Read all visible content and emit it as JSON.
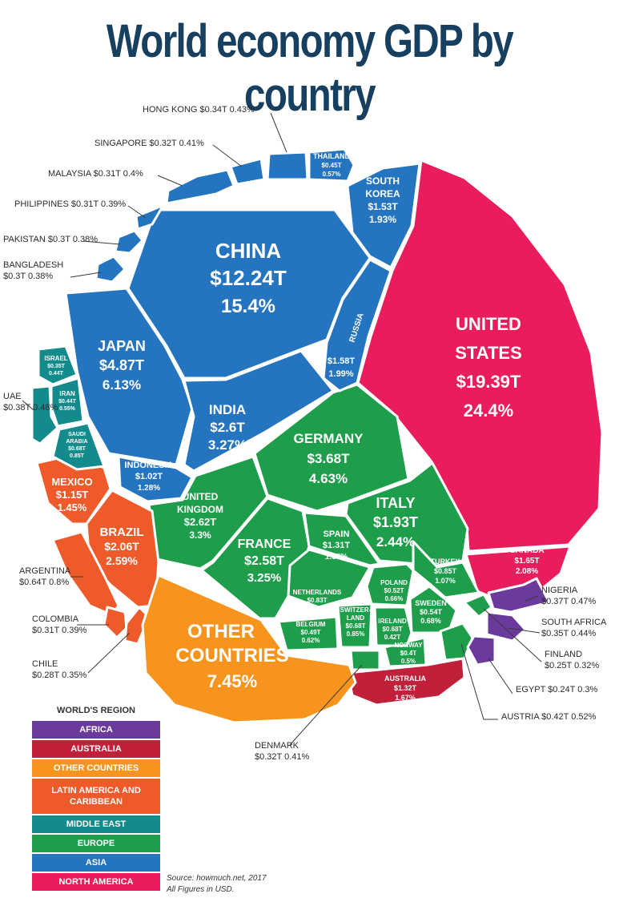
{
  "title": "World economy GDP by country",
  "source": "Source: howmuch.net, 2017",
  "currency_note": "All Figures in USD.",
  "legend": {
    "title": "WORLD'S REGION",
    "items": [
      {
        "label": "AFRICA",
        "color": "#6a3a9c"
      },
      {
        "label": "AUSTRALIA",
        "color": "#c0203a"
      },
      {
        "label": "OTHER COUNTRIES",
        "color": "#f7941d"
      },
      {
        "label": "LATIN AMERICA AND CARIBBEAN",
        "color": "#ee5a2a"
      },
      {
        "label": "MIDDLE EAST",
        "color": "#138a8c"
      },
      {
        "label": "EUROPE",
        "color": "#1e9e4a"
      },
      {
        "label": "ASIA",
        "color": "#2474c0"
      },
      {
        "label": "NORTH AMERICA",
        "color": "#e91d5c"
      }
    ]
  },
  "chart_data": {
    "type": "voronoi treemap",
    "title": "World economy GDP by country",
    "units": "USD trillions / share of world GDP",
    "countries": [
      {
        "name": "UNITED STATES",
        "value": "$19.39T",
        "share": "24.4%",
        "gdp": 19.39,
        "pct": 24.4,
        "region": "NORTH AMERICA"
      },
      {
        "name": "CHINA",
        "value": "$12.24T",
        "share": "15.4%",
        "gdp": 12.24,
        "pct": 15.4,
        "region": "ASIA"
      },
      {
        "name": "JAPAN",
        "value": "$4.87T",
        "share": "6.13%",
        "gdp": 4.87,
        "pct": 6.13,
        "region": "ASIA"
      },
      {
        "name": "GERMANY",
        "value": "$3.68T",
        "share": "4.63%",
        "gdp": 3.68,
        "pct": 4.63,
        "region": "EUROPE"
      },
      {
        "name": "INDIA",
        "value": "$2.6T",
        "share": "3.27%",
        "gdp": 2.6,
        "pct": 3.27,
        "region": "ASIA"
      },
      {
        "name": "UNITED KINGDOM",
        "value": "$2.62T",
        "share": "3.3%",
        "gdp": 2.62,
        "pct": 3.3,
        "region": "EUROPE"
      },
      {
        "name": "FRANCE",
        "value": "$2.58T",
        "share": "3.25%",
        "gdp": 2.58,
        "pct": 3.25,
        "region": "EUROPE"
      },
      {
        "name": "BRAZIL",
        "value": "$2.06T",
        "share": "2.59%",
        "gdp": 2.06,
        "pct": 2.59,
        "region": "LATIN AMERICA AND CARIBBEAN"
      },
      {
        "name": "ITALY",
        "value": "$1.93T",
        "share": "2.44%",
        "gdp": 1.93,
        "pct": 2.44,
        "region": "EUROPE"
      },
      {
        "name": "CANADA",
        "value": "$1.65T",
        "share": "2.08%",
        "gdp": 1.65,
        "pct": 2.08,
        "region": "NORTH AMERICA"
      },
      {
        "name": "RUSSIA",
        "value": "$1.58T",
        "share": "1.99%",
        "gdp": 1.58,
        "pct": 1.99,
        "region": "ASIA"
      },
      {
        "name": "SOUTH KOREA",
        "value": "$1.53T",
        "share": "1.93%",
        "gdp": 1.53,
        "pct": 1.93,
        "region": "ASIA"
      },
      {
        "name": "AUSTRALIA",
        "value": "$1.32T",
        "share": "1.67%",
        "gdp": 1.32,
        "pct": 1.67,
        "region": "AUSTRALIA"
      },
      {
        "name": "SPAIN",
        "value": "$1.31T",
        "share": "1.65%",
        "gdp": 1.31,
        "pct": 1.65,
        "region": "EUROPE"
      },
      {
        "name": "MEXICO",
        "value": "$1.15T",
        "share": "1.45%",
        "gdp": 1.15,
        "pct": 1.45,
        "region": "LATIN AMERICA AND CARIBBEAN"
      },
      {
        "name": "INDONESIA",
        "value": "$1.02T",
        "share": "1.28%",
        "gdp": 1.02,
        "pct": 1.28,
        "region": "ASIA"
      },
      {
        "name": "TURKEY",
        "value": "$0.85T",
        "share": "1.07%",
        "gdp": 0.85,
        "pct": 1.07,
        "region": "EUROPE"
      },
      {
        "name": "NETHERLANDS",
        "value": "$0.83T",
        "share": "1.04%",
        "gdp": 0.83,
        "pct": 1.04,
        "region": "EUROPE"
      },
      {
        "name": "SAUDI ARABIA",
        "value": "$0.68T",
        "share": "0.85T",
        "gdp": 0.68,
        "pct": 0.85,
        "region": "MIDDLE EAST"
      },
      {
        "name": "SWITZERLAND",
        "value": "$0.68T",
        "share": "0.85%",
        "gdp": 0.68,
        "pct": 0.85,
        "region": "EUROPE"
      },
      {
        "name": "ARGENTINA",
        "value": "$0.64T",
        "share": "0.8%",
        "gdp": 0.64,
        "pct": 0.8,
        "region": "LATIN AMERICA AND CARIBBEAN"
      },
      {
        "name": "SWEDEN",
        "value": "$0.54T",
        "share": "0.68%",
        "gdp": 0.54,
        "pct": 0.68,
        "region": "EUROPE"
      },
      {
        "name": "POLAND",
        "value": "$0.52T",
        "share": "0.66%",
        "gdp": 0.52,
        "pct": 0.66,
        "region": "EUROPE"
      },
      {
        "name": "BELGIUM",
        "value": "$0.49T",
        "share": "0.62%",
        "gdp": 0.49,
        "pct": 0.62,
        "region": "EUROPE"
      },
      {
        "name": "THAILAND",
        "value": "$0.45T",
        "share": "0.57%",
        "gdp": 0.45,
        "pct": 0.57,
        "region": "ASIA"
      },
      {
        "name": "IRAN",
        "value": "$0.44T",
        "share": "0.55%",
        "gdp": 0.44,
        "pct": 0.55,
        "region": "MIDDLE EAST"
      },
      {
        "name": "AUSTRIA",
        "value": "$0.42T",
        "share": "0.52%",
        "gdp": 0.42,
        "pct": 0.52,
        "region": "EUROPE"
      },
      {
        "name": "NORWAY",
        "value": "$0.4T",
        "share": "0.5%",
        "gdp": 0.4,
        "pct": 0.5,
        "region": "EUROPE"
      },
      {
        "name": "UAE",
        "value": "$0.38T",
        "share": "0.48%",
        "gdp": 0.38,
        "pct": 0.48,
        "region": "MIDDLE EAST"
      },
      {
        "name": "NIGERIA",
        "value": "$0.37T",
        "share": "0.47%",
        "gdp": 0.37,
        "pct": 0.47,
        "region": "AFRICA"
      },
      {
        "name": "SOUTH AFRICA",
        "value": "$0.35T",
        "share": "0.44%",
        "gdp": 0.35,
        "pct": 0.44,
        "region": "AFRICA"
      },
      {
        "name": "HONG KONG",
        "value": "$0.34T",
        "share": "0.43%",
        "gdp": 0.34,
        "pct": 0.43,
        "region": "ASIA"
      },
      {
        "name": "ISRAEL",
        "value": "$0.35T",
        "share": "0.44T",
        "gdp": 0.35,
        "pct": 0.44,
        "region": "MIDDLE EAST"
      },
      {
        "name": "IRELAND",
        "value": "$0.68T",
        "share": "0.42T",
        "gdp": 0.68,
        "pct": 0.42,
        "region": "EUROPE"
      },
      {
        "name": "SINGAPORE",
        "value": "$0.32T",
        "share": "0.41%",
        "gdp": 0.32,
        "pct": 0.41,
        "region": "ASIA"
      },
      {
        "name": "DENMARK",
        "value": "$0.32T",
        "share": "0.41%",
        "gdp": 0.32,
        "pct": 0.41,
        "region": "EUROPE"
      },
      {
        "name": "MALAYSIA",
        "value": "$0.31T",
        "share": "0.4%",
        "gdp": 0.31,
        "pct": 0.4,
        "region": "ASIA"
      },
      {
        "name": "PHILIPPINES",
        "value": "$0.31T",
        "share": "0.39%",
        "gdp": 0.31,
        "pct": 0.39,
        "region": "ASIA"
      },
      {
        "name": "COLOMBIA",
        "value": "$0.31T",
        "share": "0.39%",
        "gdp": 0.31,
        "pct": 0.39,
        "region": "LATIN AMERICA AND CARIBBEAN"
      },
      {
        "name": "PAKISTAN",
        "value": "$0.3T",
        "share": "0.38%",
        "gdp": 0.3,
        "pct": 0.38,
        "region": "ASIA"
      },
      {
        "name": "BANGLADESH",
        "value": "$0.3T",
        "share": "0.38%",
        "gdp": 0.3,
        "pct": 0.38,
        "region": "ASIA"
      },
      {
        "name": "CHILE",
        "value": "$0.28T",
        "share": "0.35%",
        "gdp": 0.28,
        "pct": 0.35,
        "region": "LATIN AMERICA AND CARIBBEAN"
      },
      {
        "name": "FINLAND",
        "value": "$0.25T",
        "share": "0.32%",
        "gdp": 0.25,
        "pct": 0.32,
        "region": "EUROPE"
      },
      {
        "name": "EGYPT",
        "value": "$0.24T",
        "share": "0.3%",
        "gdp": 0.24,
        "pct": 0.3,
        "region": "AFRICA"
      },
      {
        "name": "OTHER COUNTRIES",
        "value": "",
        "share": "7.45%",
        "gdp": null,
        "pct": 7.45,
        "region": "OTHER COUNTRIES"
      }
    ]
  }
}
